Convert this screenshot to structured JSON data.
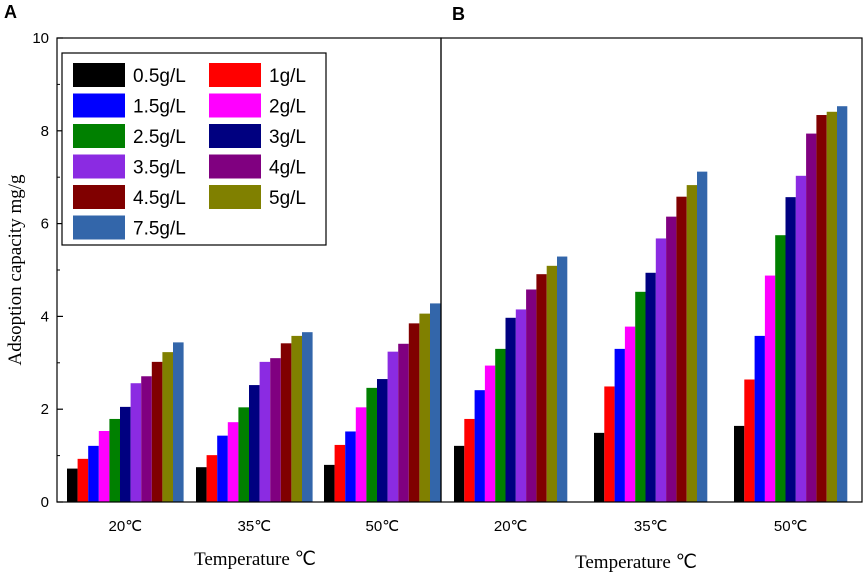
{
  "chart_data": [
    {
      "panel": "A",
      "type": "bar",
      "categories": [
        "20℃",
        "35℃",
        "50℃"
      ],
      "xlabel": "Temperature ℃",
      "ylabel": "Adsoption capacity mg/g",
      "ylim": [
        0,
        10
      ],
      "yticks": [
        "0",
        "2",
        "4",
        "6",
        "8",
        "10"
      ],
      "legend_position": "top-left",
      "series": [
        {
          "name": "0.5g/L",
          "color": "#000000",
          "values": [
            0.72,
            0.75,
            0.8
          ]
        },
        {
          "name": "1g/L",
          "color": "#ff0000",
          "values": [
            0.93,
            1.01,
            1.23
          ]
        },
        {
          "name": "1.5g/L",
          "color": "#0000ff",
          "values": [
            1.21,
            1.43,
            1.52
          ]
        },
        {
          "name": "2g/L",
          "color": "#ff00ff",
          "values": [
            1.53,
            1.72,
            2.04
          ]
        },
        {
          "name": "2.5g/L",
          "color": "#008000",
          "values": [
            1.79,
            2.04,
            2.46
          ]
        },
        {
          "name": "3g/L",
          "color": "#000080",
          "values": [
            2.05,
            2.52,
            2.65
          ]
        },
        {
          "name": "3.5g/L",
          "color": "#8b2be2",
          "values": [
            2.56,
            3.02,
            3.24
          ]
        },
        {
          "name": "4g/L",
          "color": "#800080",
          "values": [
            2.71,
            3.1,
            3.41
          ]
        },
        {
          "name": "4.5g/L",
          "color": "#800000",
          "values": [
            3.02,
            3.42,
            3.85
          ]
        },
        {
          "name": "5g/L",
          "color": "#808000",
          "values": [
            3.23,
            3.58,
            4.06
          ]
        },
        {
          "name": "7.5g/L",
          "color": "#3366aa",
          "values": [
            3.44,
            3.66,
            4.28
          ]
        }
      ]
    },
    {
      "panel": "B",
      "type": "bar",
      "categories": [
        "20℃",
        "35℃",
        "50℃"
      ],
      "xlabel": "Temperature ℃",
      "ylabel": "",
      "ylim": [
        0,
        10
      ],
      "series": [
        {
          "name": "0.5g/L",
          "color": "#000000",
          "values": [
            1.21,
            1.49,
            1.64
          ]
        },
        {
          "name": "1g/L",
          "color": "#ff0000",
          "values": [
            1.79,
            2.49,
            2.64
          ]
        },
        {
          "name": "1.5g/L",
          "color": "#0000ff",
          "values": [
            2.41,
            3.3,
            3.58
          ]
        },
        {
          "name": "2g/L",
          "color": "#ff00ff",
          "values": [
            2.94,
            3.78,
            4.88
          ]
        },
        {
          "name": "2.5g/L",
          "color": "#008000",
          "values": [
            3.3,
            4.53,
            5.75
          ]
        },
        {
          "name": "3g/L",
          "color": "#000080",
          "values": [
            3.97,
            4.94,
            6.57
          ]
        },
        {
          "name": "3.5g/L",
          "color": "#8b2be2",
          "values": [
            4.15,
            5.68,
            7.03
          ]
        },
        {
          "name": "4g/L",
          "color": "#800080",
          "values": [
            4.58,
            6.15,
            7.94
          ]
        },
        {
          "name": "4.5g/L",
          "color": "#800000",
          "values": [
            4.91,
            6.58,
            8.34
          ]
        },
        {
          "name": "5g/L",
          "color": "#808000",
          "values": [
            5.09,
            6.83,
            8.41
          ]
        },
        {
          "name": "7.5g/L",
          "color": "#3366aa",
          "values": [
            5.29,
            7.12,
            8.53
          ]
        }
      ]
    }
  ]
}
